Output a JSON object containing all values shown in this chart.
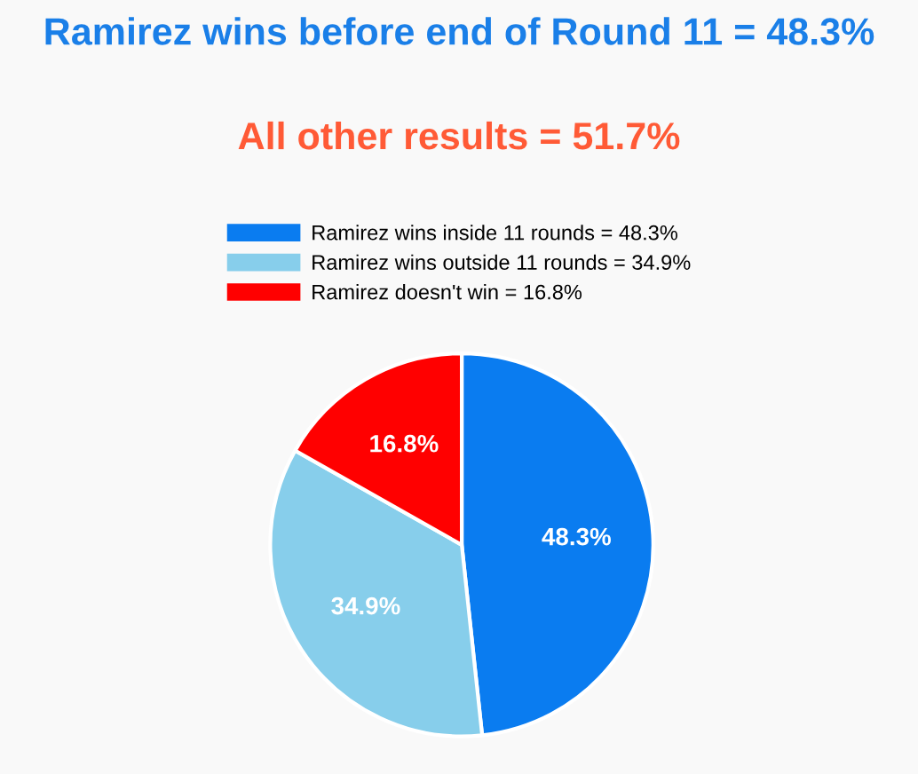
{
  "chart_data": {
    "type": "pie",
    "title": "Ramirez wins before end of Round 11 = 48.3%",
    "subtitle": "All other results = 51.7%",
    "categories": [
      "Ramirez wins inside 11 rounds = 48.3%",
      "Ramirez wins outside 11 rounds = 34.9%",
      "Ramirez doesn't win = 16.8%"
    ],
    "values": [
      48.3,
      34.9,
      16.8
    ],
    "colors": [
      "#0a7cf0",
      "#87ceeb",
      "#ff0000"
    ],
    "value_labels": [
      "48.3%",
      "34.9%",
      "16.8%"
    ],
    "legend": "top"
  }
}
